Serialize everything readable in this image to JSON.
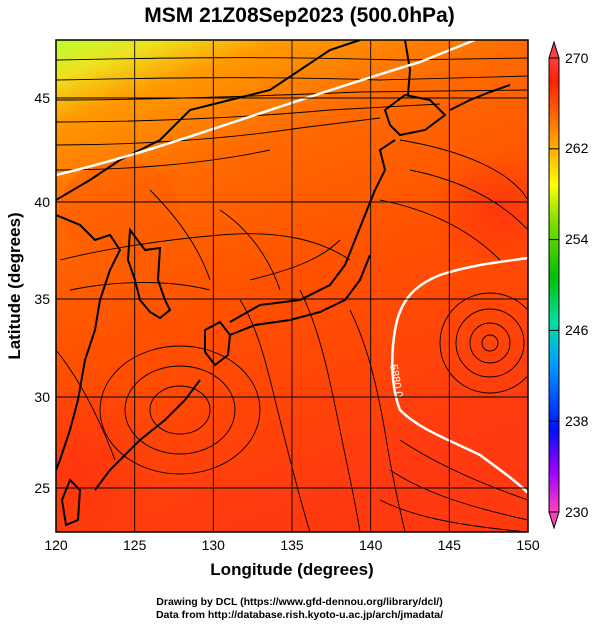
{
  "title": "MSM 21Z08Sep2023 (500.0hPa)",
  "map": {
    "x_axis": {
      "label": "Longitude (degrees)",
      "range": [
        120,
        150
      ],
      "ticks": [
        "120",
        "125",
        "130",
        "135",
        "140",
        "145",
        "150"
      ]
    },
    "y_axis": {
      "label": "Latitude  (degrees)",
      "range": [
        22.8,
        47.8
      ],
      "ticks": [
        "25",
        "30",
        "35",
        "40",
        "45"
      ]
    },
    "contour_label": "5880.0",
    "colorbar": {
      "range": [
        230,
        270
      ],
      "ticks": [
        "230",
        "238",
        "246",
        "254",
        "262",
        "270"
      ],
      "colors": [
        "#ff40c0",
        "#a000ff",
        "#0010ff",
        "#00a0ff",
        "#00e0a0",
        "#00c000",
        "#80e000",
        "#ffff00",
        "#ffb000",
        "#ff6000",
        "#ff2000",
        "#ff4040"
      ]
    },
    "grid": true
  },
  "credits": {
    "line1": "Drawing by DCL (https://www.gfd-dennou.org/library/dcl/)",
    "line2": "Data from http://database.rish.kyoto-u.ac.jp/arch/jmadata/"
  }
}
